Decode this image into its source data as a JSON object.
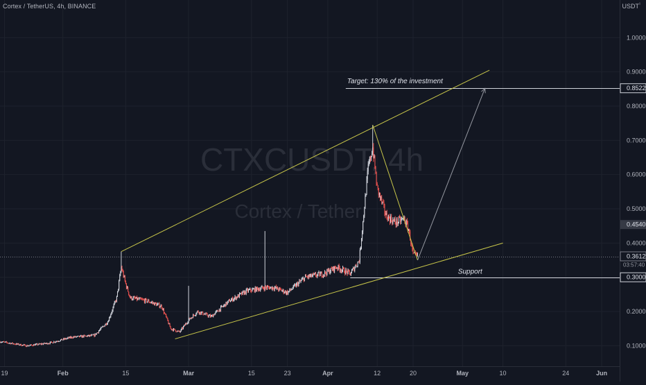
{
  "header": {
    "symbol_title": "Cortex / TetherUS, 4h, BINANCE",
    "currency": "USDT",
    "currency_suffix": "¹"
  },
  "watermark": {
    "ticker": "CTXCUSDT, 4h",
    "name": "Cortex / Tether"
  },
  "colors": {
    "background": "#131722",
    "grid": "#1e222d",
    "up_candle": "#d1d4dc",
    "down_candle": "#ef5350",
    "trendline": "#c9c74a",
    "target_arrow": "#9598a1",
    "level_line": "#d1d4dc",
    "axis_text": "#b2b5be",
    "tag_last_bg": "#262b38"
  },
  "annotations": {
    "target_text": "Target: 130% of the investment",
    "support_text": "Support"
  },
  "price_tags": {
    "target": "0.8522",
    "mid": "0.4540",
    "last": "0.3612",
    "countdown": "03:57:40",
    "support": "0.3000"
  },
  "chart_data": {
    "type": "candlestick",
    "title": "Cortex / TetherUS, 4h, BINANCE",
    "y_axis": {
      "unit": "USDT",
      "ticks": [
        "1.0000",
        "0.9000",
        "0.8000",
        "0.7000",
        "0.6000",
        "0.5000",
        "0.4000",
        "0.3000",
        "0.2000",
        "0.1000"
      ],
      "range": [
        0.04,
        1.11
      ],
      "scale": "linear"
    },
    "x_axis": {
      "ticks": [
        "19",
        "Feb",
        "15",
        "Mar",
        "15",
        "23",
        "Apr",
        "12",
        "20",
        "May",
        "10",
        "24",
        "Jun"
      ],
      "range_dates": [
        "2021-01-18",
        "2021-06-05"
      ],
      "tick_dates": [
        "2021-01-19",
        "2021-02-01",
        "2021-02-15",
        "2021-03-01",
        "2021-03-15",
        "2021-03-23",
        "2021-04-01",
        "2021-04-12",
        "2021-04-20",
        "2021-05-01",
        "2021-05-10",
        "2021-05-24",
        "2021-06-01"
      ]
    },
    "grid": true,
    "price_path": [
      [
        "2021-01-18",
        0.112
      ],
      [
        "2021-01-24",
        0.1
      ],
      [
        "2021-01-29",
        0.108
      ],
      [
        "2021-02-03",
        0.125
      ],
      [
        "2021-02-08",
        0.13
      ],
      [
        "2021-02-11",
        0.17
      ],
      [
        "2021-02-13",
        0.24
      ],
      [
        "2021-02-14",
        0.33
      ],
      [
        "2021-02-15",
        0.28
      ],
      [
        "2021-02-16",
        0.24
      ],
      [
        "2021-02-20",
        0.23
      ],
      [
        "2021-02-23",
        0.215
      ],
      [
        "2021-02-25",
        0.15
      ],
      [
        "2021-02-27",
        0.14
      ],
      [
        "2021-03-01",
        0.175
      ],
      [
        "2021-03-03",
        0.2
      ],
      [
        "2021-03-06",
        0.185
      ],
      [
        "2021-03-10",
        0.23
      ],
      [
        "2021-03-14",
        0.26
      ],
      [
        "2021-03-18",
        0.27
      ],
      [
        "2021-03-20",
        0.27
      ],
      [
        "2021-03-23",
        0.255
      ],
      [
        "2021-03-27",
        0.3
      ],
      [
        "2021-03-31",
        0.31
      ],
      [
        "2021-04-03",
        0.33
      ],
      [
        "2021-04-06",
        0.31
      ],
      [
        "2021-04-08",
        0.35
      ],
      [
        "2021-04-10",
        0.62
      ],
      [
        "2021-04-11",
        0.68
      ],
      [
        "2021-04-12",
        0.56
      ],
      [
        "2021-04-14",
        0.48
      ],
      [
        "2021-04-16",
        0.46
      ],
      [
        "2021-04-18",
        0.47
      ],
      [
        "2021-04-19",
        0.44
      ],
      [
        "2021-04-20",
        0.365
      ],
      [
        "2021-04-21",
        0.361
      ]
    ],
    "notable_highs": [
      {
        "date": "2021-02-14",
        "high": 0.375
      },
      {
        "date": "2021-03-01",
        "high": 0.275
      },
      {
        "date": "2021-03-18",
        "high": 0.435
      },
      {
        "date": "2021-04-11",
        "high": 0.745
      }
    ],
    "series": [
      {
        "points": [
          [
            "2021-02-14",
            0.375
          ],
          [
            "2021-05-07",
            0.905
          ]
        ]
      },
      {
        "points": [
          [
            "2021-02-26",
            0.12
          ],
          [
            "2021-05-10",
            0.4
          ]
        ]
      },
      {
        "points": [
          [
            "2021-04-11",
            0.745
          ],
          [
            "2021-04-21",
            0.35
          ]
        ]
      },
      {
        "points": [
          [
            "2021-04-21",
            0.35
          ],
          [
            "2021-05-06",
            0.852
          ]
        ]
      }
    ],
    "horizontal_levels": [
      {
        "value": 0.8522,
        "label": "Target: 130% of the investment",
        "start_date": "2021-04-05"
      },
      {
        "value": 0.3612,
        "label": ""
      },
      {
        "value": 0.3,
        "label": "Support",
        "start_date": "2021-04-06"
      }
    ]
  }
}
